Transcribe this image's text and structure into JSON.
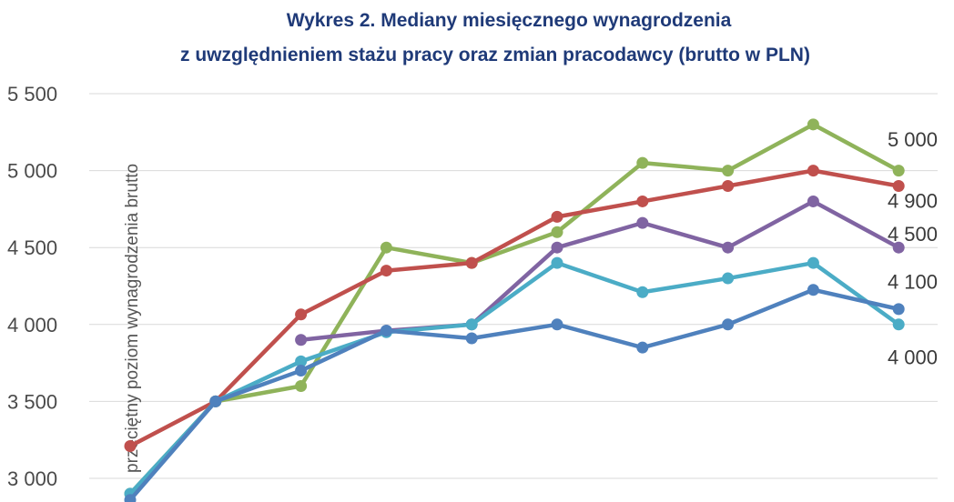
{
  "chart_data": {
    "type": "line",
    "title_line1": "Wykres 2. Mediany miesięcznego wynagrodzenia",
    "title_line2": "z uwzględnieniem stażu pracy oraz zmian pracodawcy (brutto w PLN)",
    "ylabel": "przeciętny poziom wynagrodzenia brutto",
    "ylim": [
      3000,
      5500
    ],
    "yticks": [
      {
        "value": 3000,
        "label": "3 000"
      },
      {
        "value": 3500,
        "label": "3 500"
      },
      {
        "value": 4000,
        "label": "4 000"
      },
      {
        "value": 4500,
        "label": "4 500"
      },
      {
        "value": 5000,
        "label": "5 000"
      },
      {
        "value": 5500,
        "label": "5 500"
      }
    ],
    "grid": true,
    "x": [
      0,
      1,
      2,
      3,
      4,
      5,
      6,
      7,
      8,
      9
    ],
    "series": [
      {
        "color": "#8fb35a",
        "values": [
          2900,
          3500,
          3600,
          4500,
          4400,
          4600,
          5050,
          5000,
          5300,
          5000
        ]
      },
      {
        "color": "#c0504d",
        "values": [
          3210,
          3500,
          4065,
          4350,
          4400,
          4700,
          4800,
          4900,
          5000,
          4900
        ]
      },
      {
        "color": "#8064a2",
        "values": [
          null,
          null,
          3900,
          3960,
          4000,
          4500,
          4660,
          4500,
          4800,
          4500
        ]
      },
      {
        "color": "#4bacc6",
        "values": [
          2900,
          3500,
          3760,
          3950,
          4000,
          4400,
          4210,
          4300,
          4400,
          4000
        ]
      },
      {
        "color": "#4f81bd",
        "values": [
          2860,
          3500,
          3700,
          3960,
          3910,
          4000,
          3850,
          4000,
          4225,
          4100
        ]
      }
    ],
    "end_labels": [
      {
        "text": "5 000",
        "y_value": 5205
      },
      {
        "text": "4 900",
        "y_value": 4805
      },
      {
        "text": "4 500",
        "y_value": 4590
      },
      {
        "text": "4 100",
        "y_value": 4280
      },
      {
        "text": "4 000",
        "y_value": 3790
      }
    ]
  }
}
